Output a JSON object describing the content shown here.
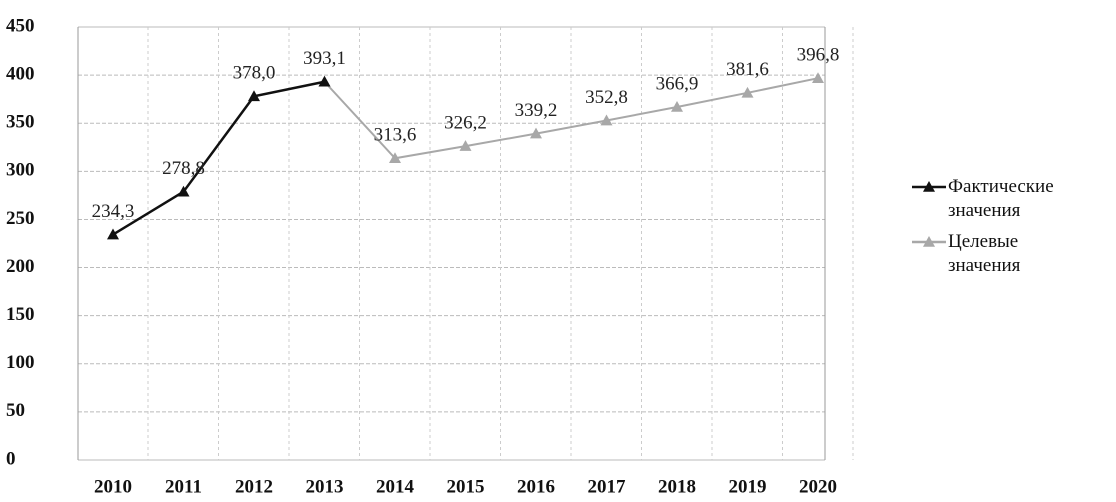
{
  "chart_data": {
    "type": "line",
    "categories": [
      "2010",
      "2011",
      "2012",
      "2013",
      "2014",
      "2015",
      "2016",
      "2017",
      "2018",
      "2019",
      "2020"
    ],
    "series": [
      {
        "name": "Фактические значения",
        "color": "#111111",
        "values": [
          234.3,
          278.8,
          378.0,
          393.1,
          null,
          null,
          null,
          null,
          null,
          null,
          null
        ],
        "value_labels": [
          "234,3",
          "278,8",
          "378,0",
          "393,1",
          null,
          null,
          null,
          null,
          null,
          null,
          null
        ]
      },
      {
        "name": "Целевые значения",
        "color": "#a8a8a8",
        "values": [
          null,
          null,
          null,
          393.1,
          313.6,
          326.2,
          339.2,
          352.8,
          366.9,
          381.6,
          396.8
        ],
        "value_labels": [
          null,
          null,
          null,
          null,
          "313,6",
          "326,2",
          "339,2",
          "352,8",
          "366,9",
          "381,6",
          "396,8"
        ]
      }
    ],
    "ylim": [
      0,
      450
    ],
    "yticks": [
      0,
      50,
      100,
      150,
      200,
      250,
      300,
      350,
      400,
      450
    ],
    "grid": true,
    "legend": "right"
  }
}
